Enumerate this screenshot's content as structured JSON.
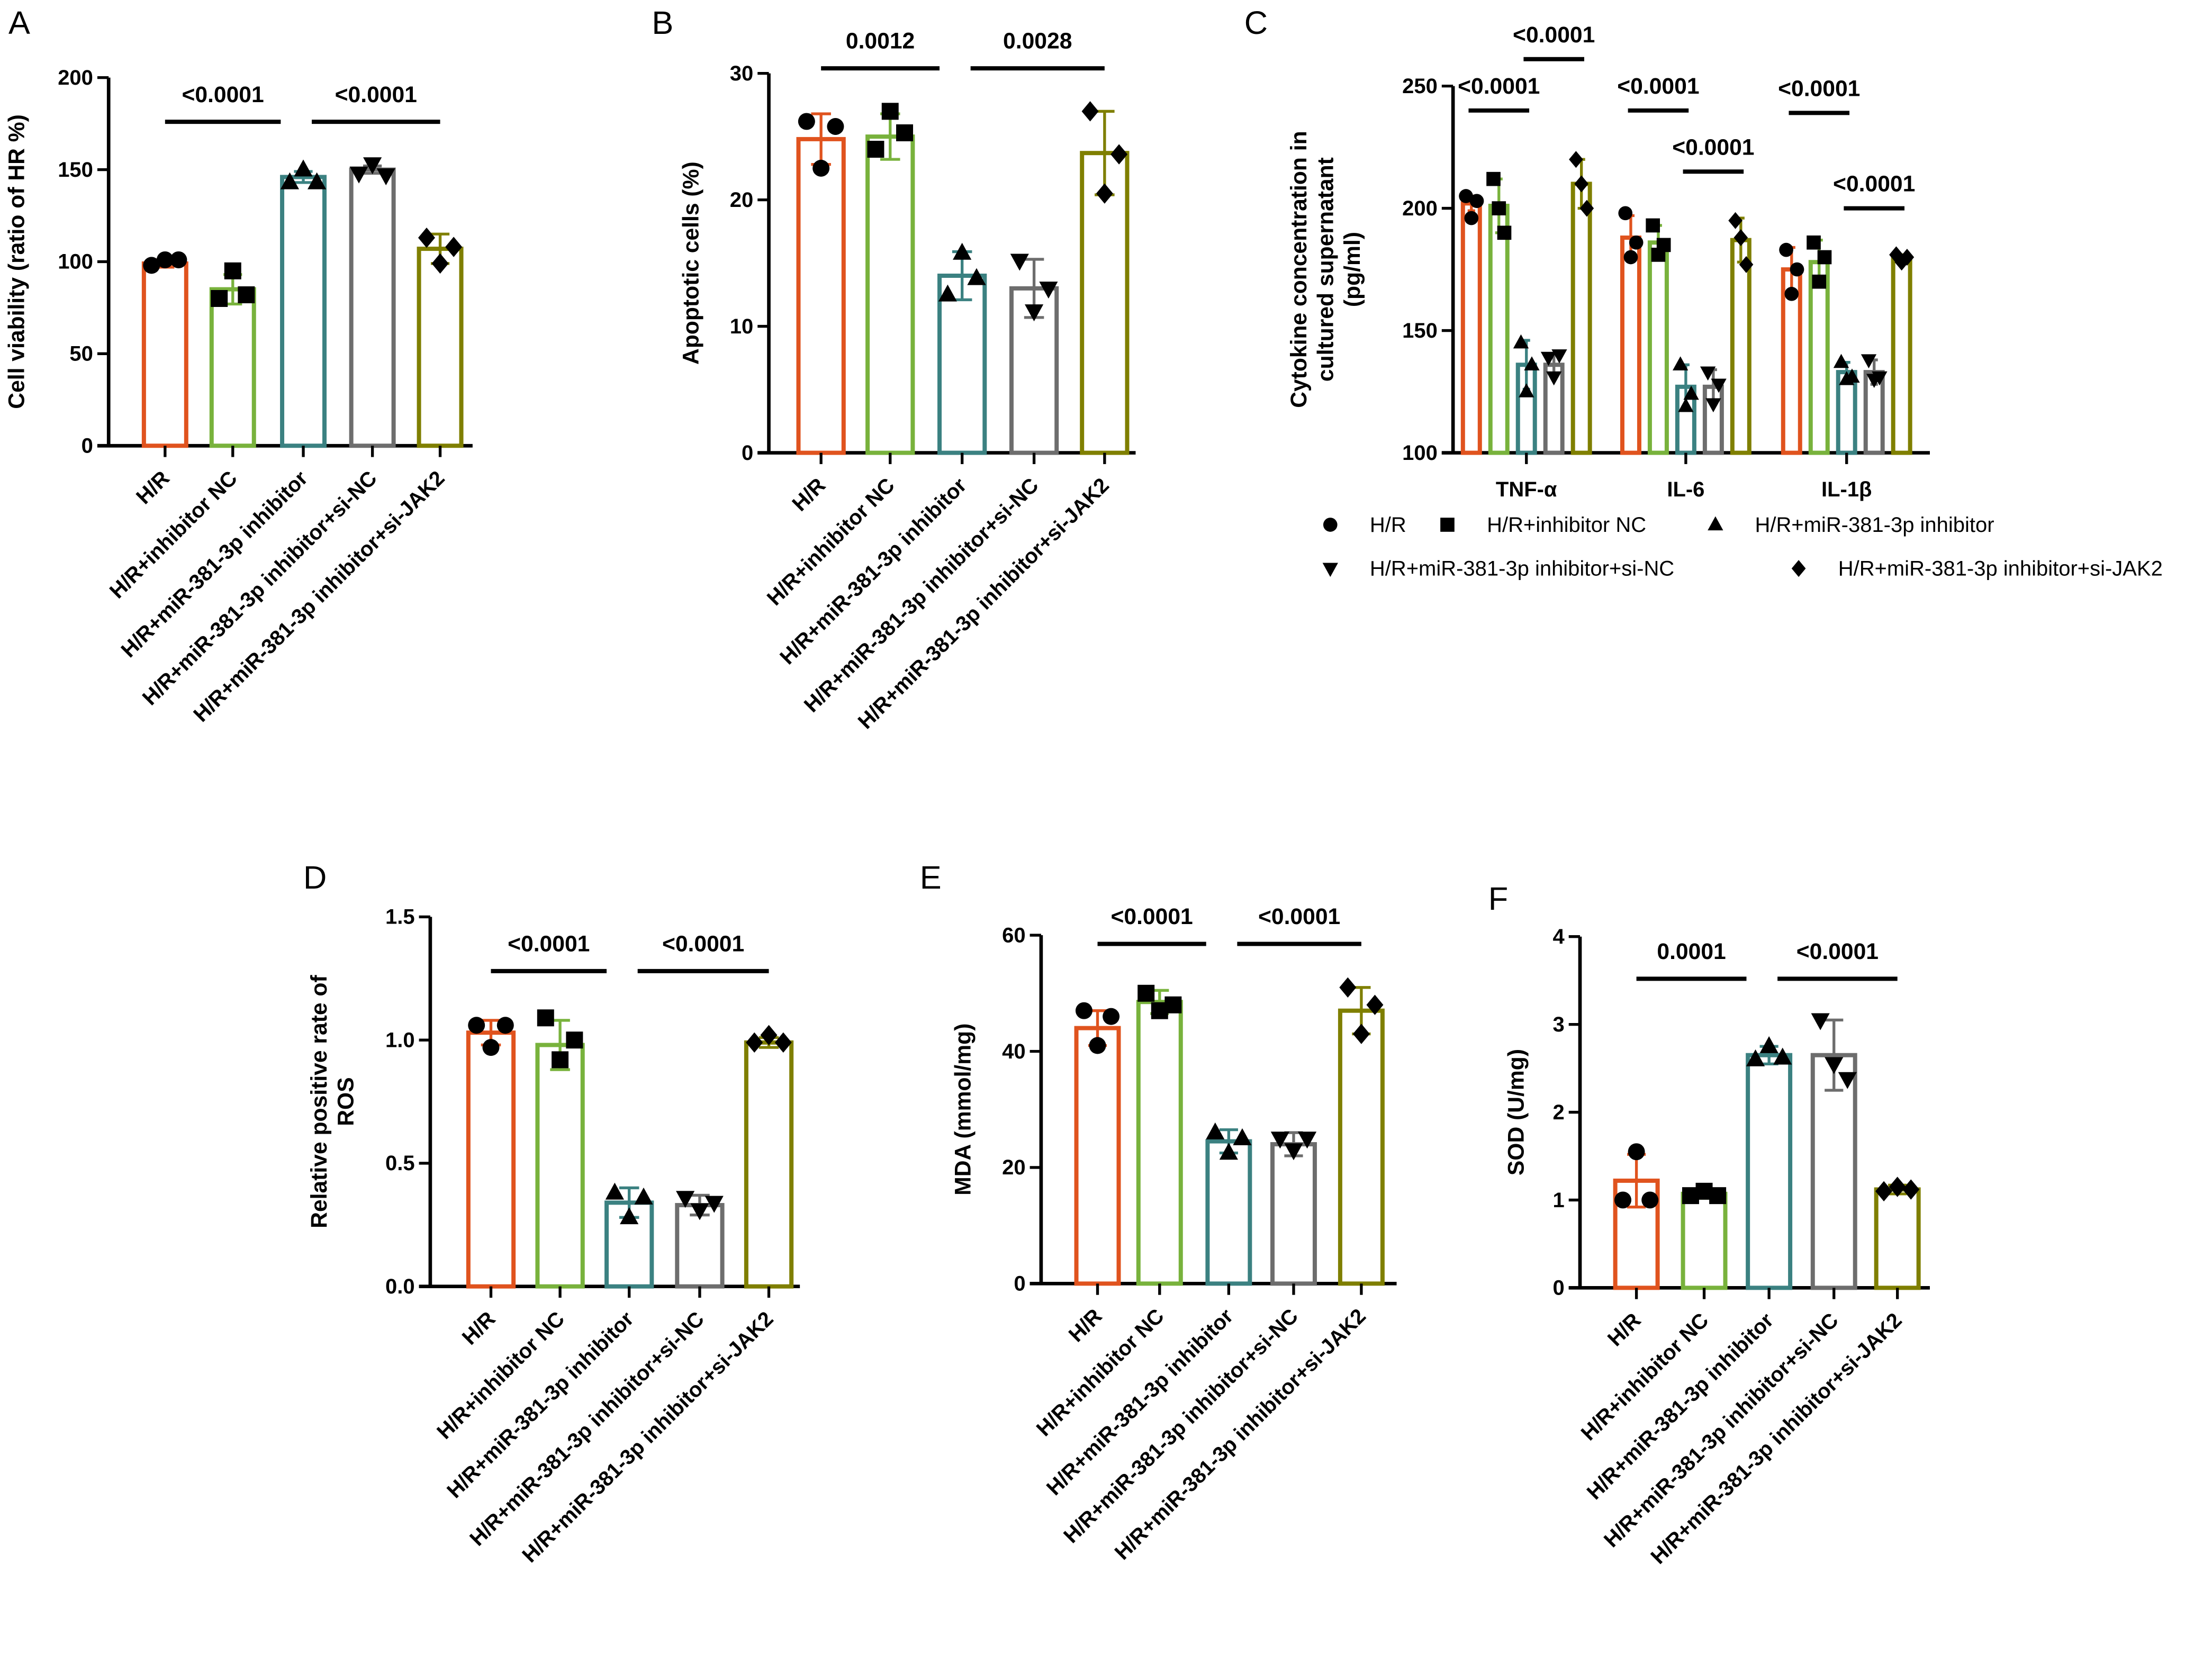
{
  "colors": [
    "#e0531e",
    "#78b23c",
    "#3b8181",
    "#6d6d6d",
    "#7f7f00"
  ],
  "markers": [
    "circle",
    "square",
    "triangle-up",
    "triangle-down",
    "diamond"
  ],
  "legend": [
    "H/R",
    "H/R+inhibitor NC",
    "H/R+miR-381-3p inhibitor",
    "H/R+miR-381-3p inhibitor+si-NC",
    "H/R+miR-381-3p inhibitor+si-JAK2"
  ],
  "chart_data": [
    {
      "panel": "A",
      "type": "bar",
      "ylabel": [
        "Cell viability (ratio of HR %)"
      ],
      "ylim": [
        0,
        200
      ],
      "yticks": [
        0,
        50,
        100,
        150,
        200
      ],
      "categories": [
        "H/R",
        "H/R+inhibitor NC",
        "H/R+miR-381-3p inhibitor",
        "H/R+miR-381-3p inhibitor+si-NC",
        "H/R+miR-381-3p inhibitor+si-JAK2"
      ],
      "values": [
        99,
        85,
        146,
        150,
        107
      ],
      "sd": [
        2,
        8,
        3,
        2,
        8
      ],
      "points": [
        [
          98,
          101,
          101
        ],
        [
          80,
          95,
          82
        ],
        [
          143,
          150,
          143
        ],
        [
          148,
          153,
          147
        ],
        [
          113,
          99,
          108
        ]
      ],
      "significance": [
        {
          "from": 0,
          "to": 2,
          "label": "<0.0001",
          "y": 176
        },
        {
          "from": 2,
          "to": 4,
          "label": "<0.0001",
          "y": 176
        }
      ]
    },
    {
      "panel": "B",
      "type": "bar",
      "ylabel": [
        "Apoptotic cells (%)"
      ],
      "ylim": [
        0,
        30
      ],
      "yticks": [
        0,
        10,
        20,
        30
      ],
      "categories": [
        "H/R",
        "H/R+inhibitor NC",
        "H/R+miR-381-3p inhibitor",
        "H/R+miR-381-3p inhibitor+si-NC",
        "H/R+miR-381-3p inhibitor+si-JAK2"
      ],
      "values": [
        24.8,
        25.0,
        14.0,
        13.0,
        23.7
      ],
      "sd": [
        2.0,
        1.8,
        1.9,
        2.3,
        3.3
      ],
      "points": [
        [
          26.2,
          22.5,
          25.8
        ],
        [
          24.0,
          27.0,
          25.3
        ],
        [
          12.5,
          15.8,
          13.8
        ],
        [
          15.2,
          11.2,
          13.0
        ],
        [
          27.0,
          20.5,
          23.6
        ]
      ],
      "significance": [
        {
          "from": 0,
          "to": 2,
          "label": "0.0012",
          "y": 30.4
        },
        {
          "from": 2,
          "to": 4,
          "label": "0.0028",
          "y": 30.4
        }
      ]
    },
    {
      "panel": "C",
      "type": "grouped-bar",
      "ylabel": [
        "Cytokine concentration in",
        "cultured supernatant",
        "(pg/ml)"
      ],
      "ylim": [
        100,
        250
      ],
      "yticks": [
        100,
        150,
        200,
        250
      ],
      "categories": [
        "TNF-α",
        "IL-6",
        "IL-1β"
      ],
      "series": [
        {
          "name": "H/R",
          "values": [
            202,
            188,
            175
          ],
          "sd": [
            3,
            9,
            9
          ],
          "points": [
            [
              205,
              196,
              203
            ],
            [
              198,
              180,
              186
            ],
            [
              183,
              165,
              175
            ]
          ]
        },
        {
          "name": "H/R+inhibitor NC",
          "values": [
            201,
            186,
            178
          ],
          "sd": [
            11,
            7,
            9
          ],
          "points": [
            [
              212,
              200,
              190
            ],
            [
              193,
              181,
              185
            ],
            [
              186,
              170,
              180
            ]
          ]
        },
        {
          "name": "H/R+miR-381-3p inhibitor",
          "values": [
            136,
            127,
            133
          ],
          "sd": [
            10,
            9,
            4
          ],
          "points": [
            [
              145,
              125,
              136
            ],
            [
              136,
              119,
              124
            ],
            [
              137,
              130,
              131
            ]
          ]
        },
        {
          "name": "H/R+miR-381-3p inhibitor+si-NC",
          "values": [
            136,
            127,
            133
          ],
          "sd": [
            4,
            7,
            5
          ],
          "points": [
            [
              139,
              131,
              140
            ],
            [
              133,
              120,
              128
            ],
            [
              138,
              130,
              131
            ]
          ]
        },
        {
          "name": "H/R+miR-381-3p inhibitor+si-JAK2",
          "values": [
            210,
            187,
            180
          ],
          "sd": [
            10,
            9,
            1
          ],
          "points": [
            [
              220,
              210,
              200
            ],
            [
              195,
              188,
              177
            ],
            [
              181,
              178,
              180
            ]
          ]
        }
      ],
      "significance": [
        {
          "group": 0,
          "from": 0,
          "to": 2,
          "label": "<0.0001",
          "y": 240
        },
        {
          "group": 0,
          "from": 2,
          "to": 4,
          "label": "<0.0001",
          "y": 261
        },
        {
          "group": 1,
          "from": 0,
          "to": 2,
          "label": "<0.0001",
          "y": 240
        },
        {
          "group": 1,
          "from": 2,
          "to": 4,
          "label": "<0.0001",
          "y": 215
        },
        {
          "group": 2,
          "from": 0,
          "to": 2,
          "label": "<0.0001",
          "y": 239
        },
        {
          "group": 2,
          "from": 2,
          "to": 4,
          "label": "<0.0001",
          "y": 200
        }
      ],
      "legend_position": "bottom"
    },
    {
      "panel": "D",
      "type": "bar",
      "ylabel": [
        "Relative positive rate of",
        "ROS"
      ],
      "ylim": [
        0,
        1.5
      ],
      "yticks": [
        "0.0",
        "0.5",
        "1.0",
        "1.5"
      ],
      "categories": [
        "H/R",
        "H/R+inhibitor NC",
        "H/R+miR-381-3p inhibitor",
        "H/R+miR-381-3p inhibitor+si-NC",
        "H/R+miR-381-3p inhibitor+si-JAK2"
      ],
      "values": [
        1.03,
        0.98,
        0.34,
        0.33,
        0.99
      ],
      "sd": [
        0.05,
        0.1,
        0.06,
        0.04,
        0.02
      ],
      "points": [
        [
          1.06,
          0.97,
          1.06
        ],
        [
          1.09,
          0.92,
          1.0
        ],
        [
          0.38,
          0.28,
          0.36
        ],
        [
          0.36,
          0.31,
          0.34
        ],
        [
          0.99,
          1.02,
          0.99
        ]
      ],
      "significance": [
        {
          "from": 0,
          "to": 2,
          "label": "<0.0001",
          "y": 1.28
        },
        {
          "from": 2,
          "to": 4,
          "label": "<0.0001",
          "y": 1.28
        }
      ]
    },
    {
      "panel": "E",
      "type": "bar",
      "ylabel": [
        "MDA (mmol/mg)"
      ],
      "ylim": [
        0,
        60
      ],
      "yticks": [
        0,
        20,
        40,
        60
      ],
      "categories": [
        "H/R",
        "H/R+inhibitor NC",
        "H/R+miR-381-3p inhibitor",
        "H/R+miR-381-3p inhibitor+si-NC",
        "H/R+miR-381-3p inhibitor+si-JAK2"
      ],
      "values": [
        44,
        48.5,
        24.5,
        24,
        47
      ],
      "sd": [
        3,
        2,
        2,
        2,
        4
      ],
      "points": [
        [
          47,
          41,
          46
        ],
        [
          50,
          47,
          48
        ],
        [
          26,
          22.5,
          25
        ],
        [
          25,
          23,
          25
        ],
        [
          51,
          43,
          48
        ]
      ],
      "significance": [
        {
          "from": 0,
          "to": 2,
          "label": "<0.0001",
          "y": 58.5
        },
        {
          "from": 2,
          "to": 4,
          "label": "<0.0001",
          "y": 58.5
        }
      ]
    },
    {
      "panel": "F",
      "type": "bar",
      "ylabel": [
        "SOD (U/mg)"
      ],
      "ylim": [
        0,
        4
      ],
      "yticks": [
        0,
        1,
        2,
        3,
        4
      ],
      "categories": [
        "H/R",
        "H/R+inhibitor NC",
        "H/R+miR-381-3p inhibitor",
        "H/R+miR-381-3p inhibitor+si-NC",
        "H/R+miR-381-3p inhibitor+si-JAK2"
      ],
      "values": [
        1.22,
        1.07,
        2.65,
        2.65,
        1.12
      ],
      "sd": [
        0.3,
        0.05,
        0.1,
        0.4,
        0.05
      ],
      "points": [
        [
          1.0,
          1.55,
          1.0
        ],
        [
          1.05,
          1.1,
          1.05
        ],
        [
          2.6,
          2.75,
          2.62
        ],
        [
          3.05,
          2.55,
          2.38
        ],
        [
          1.1,
          1.15,
          1.12
        ]
      ],
      "significance": [
        {
          "from": 0,
          "to": 2,
          "label": "0.0001",
          "y": 3.52
        },
        {
          "from": 2,
          "to": 4,
          "label": "<0.0001",
          "y": 3.52
        }
      ]
    }
  ]
}
